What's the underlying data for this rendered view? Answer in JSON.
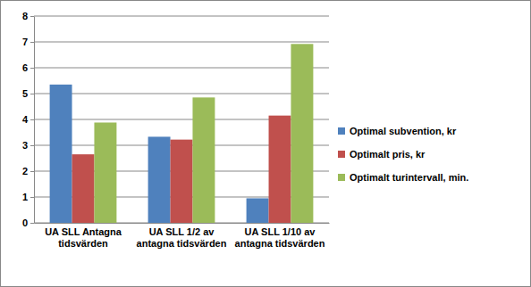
{
  "chart_data": {
    "type": "bar",
    "categories": [
      "UA SLL Antagna tidsvärden",
      "UA SLL 1/2 av antagna tidsvärden",
      "UA SLL 1/10 av antagna tidsvärden"
    ],
    "series": [
      {
        "name": "Optimal subvention, kr",
        "color": "#4f81bd",
        "values": [
          5.35,
          3.33,
          0.95
        ]
      },
      {
        "name": "Optimalt pris, kr",
        "color": "#c0504d",
        "values": [
          2.65,
          3.22,
          4.15
        ]
      },
      {
        "name": "Optimalt turintervall, min.",
        "color": "#9bbb59",
        "values": [
          3.88,
          4.85,
          6.92
        ]
      }
    ],
    "ylim": [
      0,
      8
    ],
    "yticks": [
      0,
      1,
      2,
      3,
      4,
      5,
      6,
      7,
      8
    ],
    "grid": true,
    "legend": "right"
  }
}
